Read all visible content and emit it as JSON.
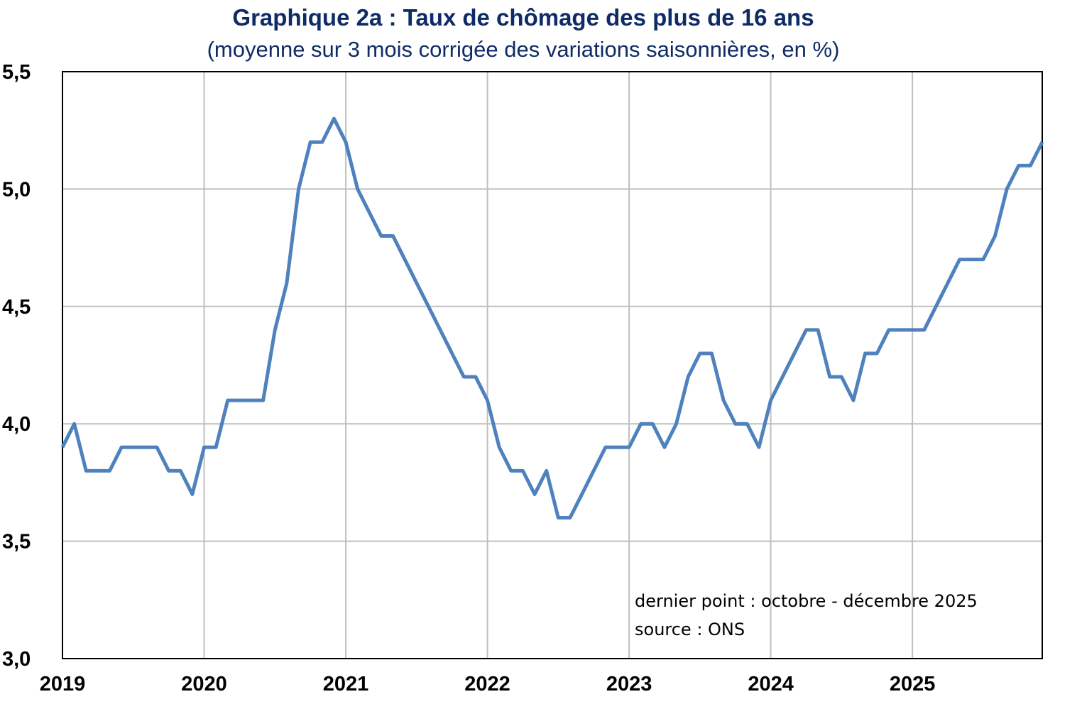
{
  "chart_data": {
    "type": "line",
    "title": "Graphique 2a : Taux de chômage des plus de 16 ans",
    "subtitle": "(moyenne sur 3 mois corrigée des variations saisonnières, en %)",
    "xlabel": "",
    "ylabel": "",
    "ylim": [
      3.0,
      5.5
    ],
    "yticks": [
      "3,0",
      "3,5",
      "4,0",
      "4,5",
      "5,0",
      "5,5"
    ],
    "ytick_values": [
      3.0,
      3.5,
      4.0,
      4.5,
      5.0,
      5.5
    ],
    "xticks": [
      "2019",
      "2020",
      "2021",
      "2022",
      "2023",
      "2024",
      "2025"
    ],
    "x_start": "2019-01",
    "x_end": "2025-12",
    "x_frequency": "monthly",
    "grid": true,
    "line_color": "#4f81bd",
    "series": [
      {
        "values": [
          3.9,
          4.0,
          3.8,
          3.8,
          3.8,
          3.9,
          3.9,
          3.9,
          3.9,
          3.8,
          3.8,
          3.7,
          3.9,
          3.9,
          4.1,
          4.1,
          4.1,
          4.1,
          4.4,
          4.6,
          5.0,
          5.2,
          5.2,
          5.3,
          5.2,
          5.0,
          4.9,
          4.8,
          4.8,
          4.7,
          4.6,
          4.5,
          4.4,
          4.3,
          4.2,
          4.2,
          4.1,
          3.9,
          3.8,
          3.8,
          3.7,
          3.8,
          3.6,
          3.6,
          3.7,
          3.8,
          3.9,
          3.9,
          3.9,
          4.0,
          4.0,
          3.9,
          4.0,
          4.2,
          4.3,
          4.3,
          4.1,
          4.0,
          4.0,
          3.9,
          4.1,
          4.2,
          4.3,
          4.4,
          4.4,
          4.2,
          4.2,
          4.1,
          4.3,
          4.3,
          4.4,
          4.4,
          4.4,
          4.4,
          4.5,
          4.6,
          4.7,
          4.7,
          4.7,
          4.8,
          5.0,
          5.1,
          5.1,
          5.2
        ]
      }
    ],
    "annotations": [
      "dernier point : octobre - décembre 2025",
      "source : ONS"
    ]
  }
}
